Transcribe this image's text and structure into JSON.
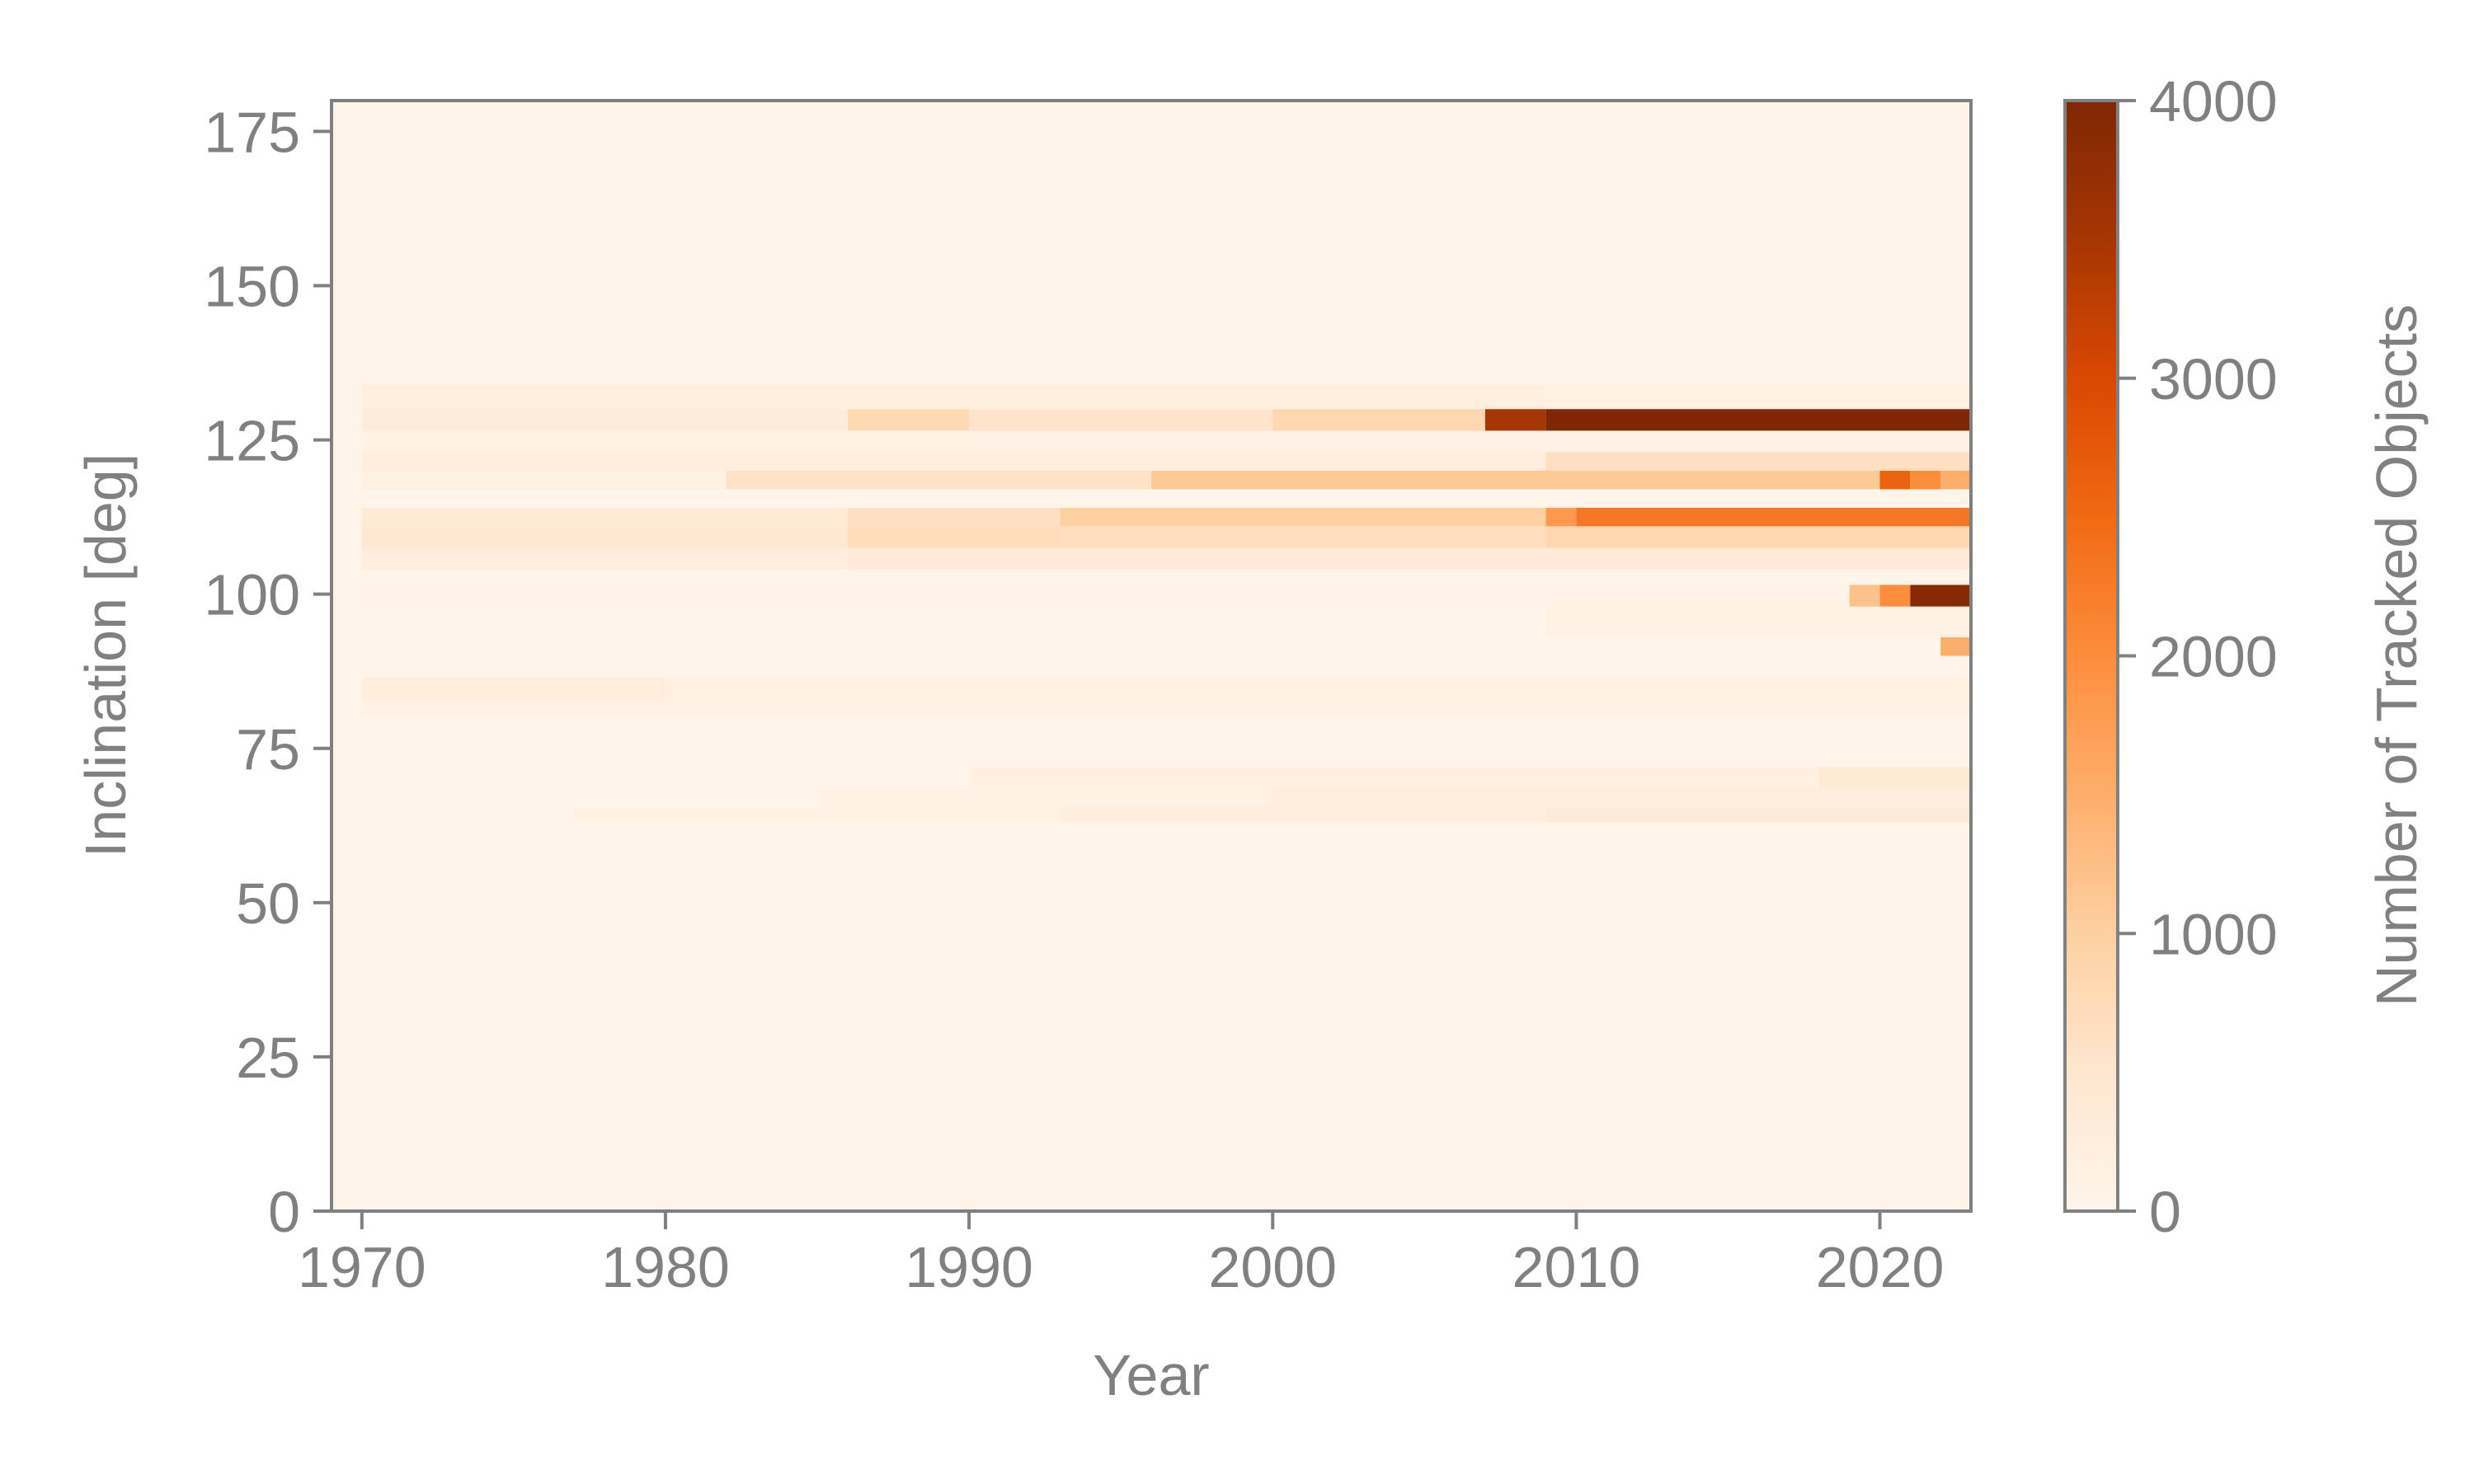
{
  "chart_data": {
    "type": "heatmap",
    "title": "",
    "xlabel": "Year",
    "ylabel": "Inclination [deg]",
    "xlim": [
      1969,
      2023
    ],
    "ylim": [
      0,
      180
    ],
    "x_ticks": [
      "1970",
      "1980",
      "1990",
      "2000",
      "2010",
      "2020"
    ],
    "y_ticks": [
      "0",
      "25",
      "50",
      "75",
      "100",
      "125",
      "150",
      "175"
    ],
    "colorbar": {
      "label": "Number of Tracked Objects",
      "range": [
        0,
        4000
      ],
      "ticks": [
        "0",
        "1000",
        "2000",
        "3000",
        "4000"
      ],
      "colormap": "Oranges",
      "color_stops": [
        "#fff5eb",
        "#fee6ce",
        "#fdd0a2",
        "#fdae6b",
        "#fd8d3c",
        "#f16913",
        "#d94801",
        "#a63603",
        "#7f2704"
      ]
    },
    "background_value": 40,
    "bands": [
      {
        "y": [
          63,
          65.5
        ],
        "segments": [
          {
            "x": [
              1977,
              1993
            ],
            "v": 120
          },
          {
            "x": [
              1993,
              2009
            ],
            "v": 220
          },
          {
            "x": [
              2009,
              2023
            ],
            "v": 350
          }
        ]
      },
      {
        "y": [
          65.5,
          68.5
        ],
        "segments": [
          {
            "x": [
              1985,
              2000
            ],
            "v": 130
          },
          {
            "x": [
              2000,
              2023
            ],
            "v": 260
          }
        ]
      },
      {
        "y": [
          68.5,
          72
        ],
        "segments": [
          {
            "x": [
              1990,
              2018
            ],
            "v": 180
          },
          {
            "x": [
              2018,
              2023
            ],
            "v": 380
          }
        ]
      },
      {
        "y": [
          80,
          83
        ],
        "segments": [
          {
            "x": [
              1970,
              2023
            ],
            "v": 110
          }
        ]
      },
      {
        "y": [
          83,
          86.5
        ],
        "segments": [
          {
            "x": [
              1970,
              1980
            ],
            "v": 280
          },
          {
            "x": [
              1980,
              2023
            ],
            "v": 180
          }
        ]
      },
      {
        "y": [
          90,
          93
        ],
        "segments": [
          {
            "x": [
              2022,
              2023
            ],
            "v": 1500
          }
        ]
      },
      {
        "y": [
          93,
          98
        ],
        "segments": [
          {
            "x": [
              2009,
              2023
            ],
            "v": 130
          }
        ]
      },
      {
        "y": [
          98,
          101.5
        ],
        "segments": [
          {
            "x": [
              1970,
              2019
            ],
            "v": 90
          },
          {
            "x": [
              2019,
              2020
            ],
            "v": 1200
          },
          {
            "x": [
              2020,
              2021
            ],
            "v": 2000
          },
          {
            "x": [
              2021,
              2023
            ],
            "v": 3900
          }
        ]
      },
      {
        "y": [
          104,
          107.5
        ],
        "segments": [
          {
            "x": [
              1970,
              1986
            ],
            "v": 260
          },
          {
            "x": [
              1986,
              2023
            ],
            "v": 360
          }
        ]
      },
      {
        "y": [
          107.5,
          111
        ],
        "segments": [
          {
            "x": [
              1970,
              1986
            ],
            "v": 420
          },
          {
            "x": [
              1986,
              1993
            ],
            "v": 700
          },
          {
            "x": [
              1993,
              2009
            ],
            "v": 680
          },
          {
            "x": [
              2009,
              2023
            ],
            "v": 850
          }
        ]
      },
      {
        "y": [
          111,
          114
        ],
        "segments": [
          {
            "x": [
              1970,
              1986
            ],
            "v": 380
          },
          {
            "x": [
              1986,
              1993
            ],
            "v": 650
          },
          {
            "x": [
              1993,
              2009
            ],
            "v": 1000
          },
          {
            "x": [
              2009,
              2010
            ],
            "v": 1800
          },
          {
            "x": [
              2010,
              2023
            ],
            "v": 2300
          }
        ]
      },
      {
        "y": [
          117,
          120
        ],
        "segments": [
          {
            "x": [
              1970,
              1982
            ],
            "v": 150
          },
          {
            "x": [
              1982,
              1996
            ],
            "v": 600
          },
          {
            "x": [
              1996,
              2020
            ],
            "v": 1100
          },
          {
            "x": [
              2020,
              2021
            ],
            "v": 2600
          },
          {
            "x": [
              2021,
              2022
            ],
            "v": 2000
          },
          {
            "x": [
              2022,
              2023
            ],
            "v": 1500
          }
        ]
      },
      {
        "y": [
          120,
          123
        ],
        "segments": [
          {
            "x": [
              1970,
              2009
            ],
            "v": 230
          },
          {
            "x": [
              2009,
              2023
            ],
            "v": 650
          }
        ]
      },
      {
        "y": [
          123,
          126.5
        ],
        "segments": [
          {
            "x": [
              1970,
              2023
            ],
            "v": 120
          }
        ]
      },
      {
        "y": [
          126.5,
          130
        ],
        "segments": [
          {
            "x": [
              1970,
              1986
            ],
            "v": 300
          },
          {
            "x": [
              1986,
              1990
            ],
            "v": 800
          },
          {
            "x": [
              1990,
              2000
            ],
            "v": 550
          },
          {
            "x": [
              2000,
              2007
            ],
            "v": 850
          },
          {
            "x": [
              2007,
              2009
            ],
            "v": 3500
          },
          {
            "x": [
              2009,
              2023
            ],
            "v": 4000
          }
        ]
      },
      {
        "y": [
          130,
          134
        ],
        "segments": [
          {
            "x": [
              1970,
              2009
            ],
            "v": 200
          },
          {
            "x": [
              2009,
              2023
            ],
            "v": 170
          }
        ]
      }
    ]
  }
}
